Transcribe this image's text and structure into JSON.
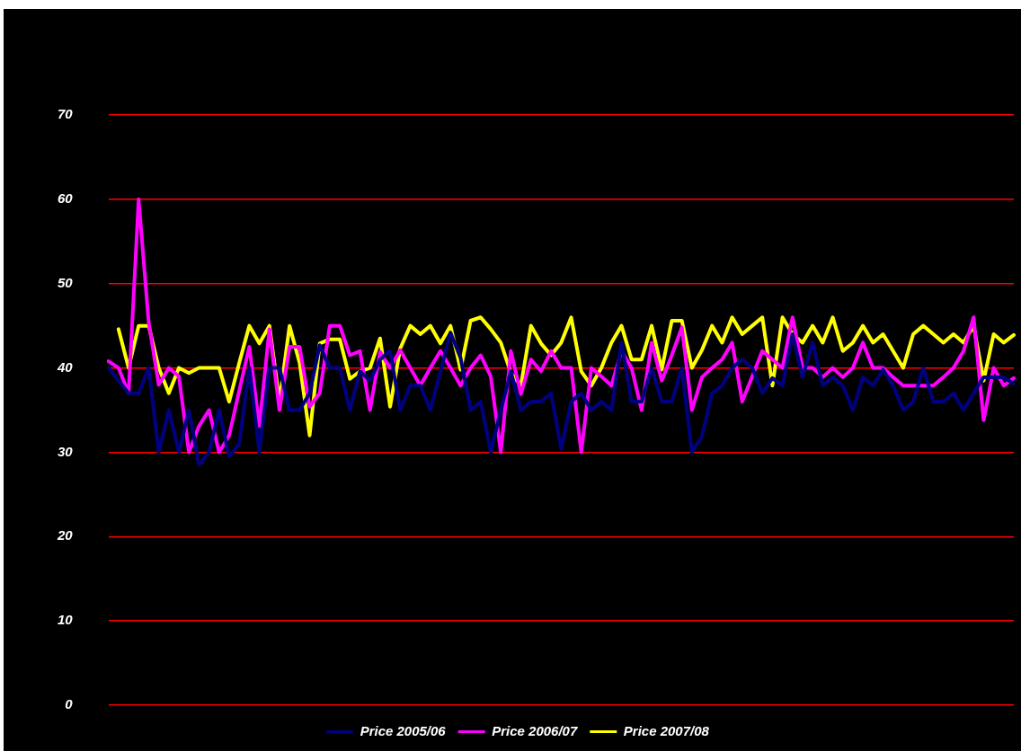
{
  "chart_data": {
    "type": "line",
    "categories": [
      null,
      null,
      null,
      null,
      null,
      null,
      null,
      null,
      null,
      null,
      null,
      null,
      null,
      null,
      null,
      null,
      null,
      null,
      null,
      null,
      null,
      null,
      null,
      null,
      null,
      null,
      null,
      null,
      null,
      null,
      null,
      null,
      null,
      null,
      null,
      null,
      null,
      null,
      null,
      null,
      null,
      null,
      null,
      null,
      null,
      null,
      null,
      null,
      null,
      null,
      null,
      null,
      null,
      null,
      null,
      null,
      null,
      null,
      null,
      null,
      null,
      null,
      null,
      null,
      null,
      null,
      null,
      null,
      null,
      null,
      null,
      null,
      null,
      null,
      null,
      null,
      null,
      null,
      null,
      null,
      null,
      null,
      null,
      null,
      null,
      null,
      null,
      null,
      null,
      null,
      null
    ],
    "series": [
      {
        "name": "Price 2005/06",
        "color": "#000080",
        "values": [
          40,
          38.5,
          37,
          37,
          40,
          30,
          35,
          30,
          35,
          28.5,
          30,
          35,
          29.5,
          31,
          40,
          30,
          40,
          40,
          35,
          35,
          37,
          42.7,
          40,
          40,
          35,
          39.6,
          38.5,
          41,
          42,
          35,
          37.9,
          37.9,
          35,
          39.6,
          44.2,
          41.2,
          35,
          36,
          30,
          35,
          39.6,
          35,
          36,
          36,
          37,
          30.4,
          36,
          37,
          35,
          36,
          35,
          43,
          36,
          36,
          40,
          36,
          36,
          40,
          30,
          31.9,
          37,
          37.9,
          40,
          41,
          40,
          37,
          38.8,
          37.9,
          44,
          38.9,
          43,
          37.9,
          38.9,
          37.9,
          35,
          38.9,
          37.9,
          39.8,
          37.9,
          35,
          36,
          40,
          36,
          36,
          37,
          35,
          37,
          38.9,
          38.9,
          38.9,
          38.1
        ]
      },
      {
        "name": "Price 2006/07",
        "color": "#ff00ff",
        "values": [
          40.8,
          40,
          37,
          60,
          45.4,
          38,
          40,
          39,
          30,
          33.1,
          35,
          30,
          32,
          37.3,
          42.5,
          33.1,
          44.6,
          35,
          42.5,
          42.5,
          35.4,
          37,
          45,
          45,
          41.5,
          42,
          35,
          41.9,
          40,
          42.1,
          40,
          37.9,
          40,
          42,
          40,
          37.9,
          40,
          41.5,
          39,
          30,
          42,
          36.9,
          41,
          39.6,
          42,
          40,
          40,
          30,
          40,
          39,
          37.9,
          42,
          40,
          35,
          43,
          38.5,
          41.5,
          44.8,
          35,
          38.9,
          40,
          41,
          43,
          36,
          39,
          42,
          41,
          40,
          46,
          40,
          40,
          38.9,
          40,
          38.9,
          40,
          43,
          40,
          40,
          38.9,
          37.9,
          37.9,
          37.9,
          37.9,
          38.9,
          40,
          42,
          46,
          33.8,
          40,
          37.9,
          38.8
        ]
      },
      {
        "name": "Price 2007/08",
        "color": "#ffff00",
        "values": [
          null,
          44.6,
          40,
          45,
          45,
          40,
          37,
          40,
          39.4,
          40,
          40,
          40,
          36,
          40.6,
          45,
          42.9,
          45,
          36,
          45,
          40.6,
          32,
          42.9,
          43.4,
          43.4,
          38.7,
          39.6,
          40,
          43.5,
          35.4,
          42.3,
          45,
          44,
          45,
          42.9,
          45,
          39.8,
          45.6,
          46,
          44.6,
          43,
          39.4,
          37.9,
          45,
          42.9,
          41.5,
          43,
          46,
          39.6,
          37.9,
          40,
          43,
          45,
          41,
          41,
          45,
          39.8,
          45.6,
          45.6,
          40,
          42.1,
          45,
          43,
          46,
          44,
          45,
          46,
          37.9,
          46,
          44,
          43,
          45,
          43,
          46,
          42,
          43,
          45,
          43,
          44,
          42,
          40,
          44,
          45,
          44,
          43,
          44,
          43,
          45,
          38.5,
          44,
          43,
          43.9
        ]
      }
    ],
    "ylim": [
      0,
      70
    ],
    "yticks": [
      0,
      10,
      20,
      30,
      40,
      50,
      60,
      70
    ],
    "grid": "y",
    "legend": "bottom",
    "marker": "none",
    "line_style": "solid",
    "tick_labels": "y"
  }
}
